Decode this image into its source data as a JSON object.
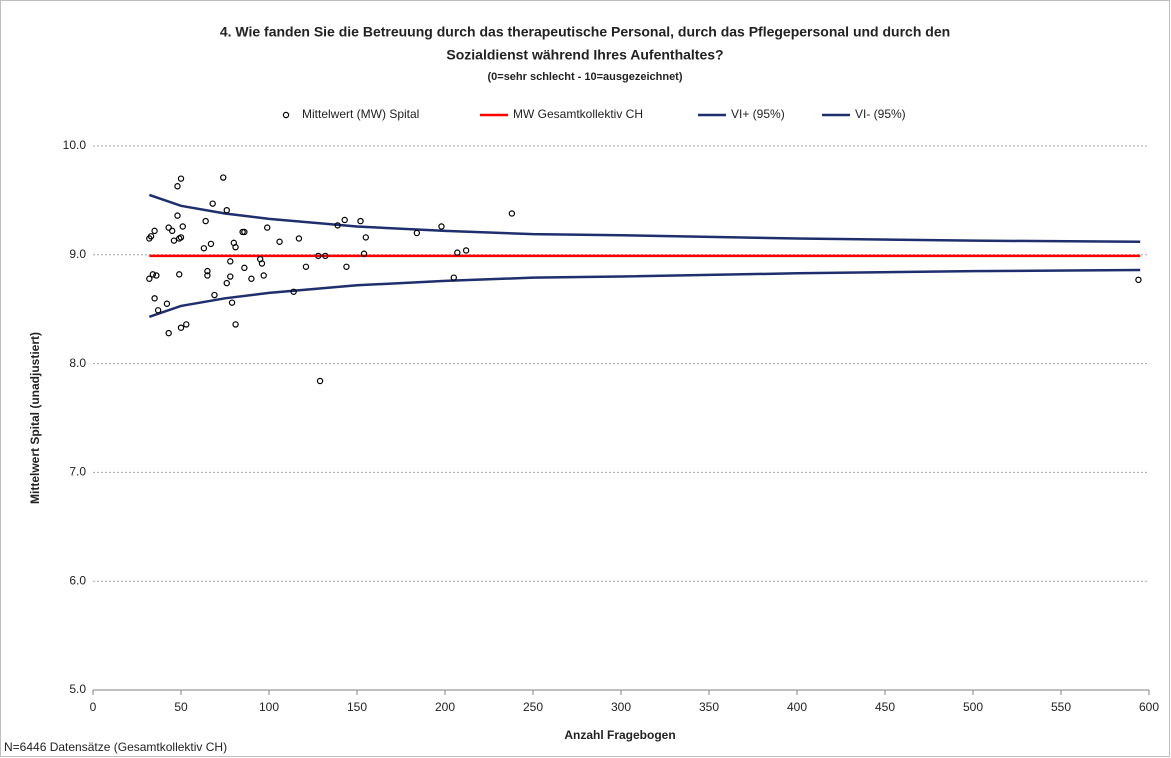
{
  "chart_data": {
    "type": "scatter",
    "title": [
      "4. Wie fanden Sie die Betreuung durch das therapeutische Personal, durch das Pflegepersonal und durch den",
      "Sozialdienst während Ihres Aufenthaltes?"
    ],
    "subtitle": "(0=sehr schlecht - 10=ausgezeichnet)",
    "x_label": "Anzahl Fragebogen",
    "y_label": "Mittelwert Spital (unadjustiert)",
    "footnote": "N=6446 Datensätze (Gesamtkollektiv CH)",
    "xlim": [
      0,
      600
    ],
    "ylim": [
      5,
      10
    ],
    "xticks": [
      0,
      50,
      100,
      150,
      200,
      250,
      300,
      350,
      400,
      450,
      500,
      550,
      600
    ],
    "yticks": [
      {
        "value": 5,
        "label": "5.0"
      },
      {
        "value": 6,
        "label": "6.0"
      },
      {
        "value": 7,
        "label": "7.0"
      },
      {
        "value": 8,
        "label": "8.0"
      },
      {
        "value": 9,
        "label": "9.0"
      },
      {
        "value": 10,
        "label": "10.0"
      }
    ],
    "grid": true,
    "legend": "top",
    "series": [
      {
        "name": "Mittelwert (MW) Spital",
        "style": "markers",
        "color": "#000000",
        "x": [
          32,
          33,
          35,
          32,
          34,
          36,
          35,
          37,
          42,
          43,
          43,
          45,
          46,
          48,
          50,
          48,
          49,
          50,
          51,
          49,
          50,
          53,
          63,
          64,
          65,
          65,
          67,
          68,
          69,
          74,
          76,
          76,
          78,
          78,
          79,
          80,
          81,
          81,
          85,
          86,
          86,
          90,
          95,
          96,
          97,
          99,
          106,
          114,
          117,
          121,
          128,
          129,
          132,
          139,
          143,
          144,
          152,
          154,
          155,
          184,
          198,
          205,
          207,
          212,
          238,
          594
        ],
        "values": [
          9.15,
          9.17,
          9.22,
          8.78,
          8.82,
          8.81,
          8.6,
          8.49,
          8.55,
          8.28,
          9.25,
          9.22,
          9.13,
          9.63,
          9.7,
          9.36,
          9.15,
          9.16,
          9.26,
          8.82,
          8.33,
          8.36,
          9.06,
          9.31,
          8.81,
          8.85,
          9.1,
          9.47,
          8.63,
          9.71,
          9.41,
          8.74,
          8.8,
          8.94,
          8.56,
          9.11,
          9.07,
          8.36,
          9.21,
          9.21,
          8.88,
          8.78,
          8.96,
          8.92,
          8.81,
          9.25,
          9.12,
          8.66,
          9.15,
          8.89,
          8.99,
          7.84,
          8.99,
          9.27,
          9.32,
          8.89,
          9.31,
          9.01,
          9.16,
          9.2,
          9.26,
          8.79,
          9.02,
          9.04,
          9.38,
          8.77
        ]
      },
      {
        "name": "MW Gesamtkollektiv CH",
        "style": "line",
        "color": "#ff0000",
        "x": [
          32,
          595
        ],
        "values": [
          8.99,
          8.99
        ]
      },
      {
        "name": "VI+ (95%)",
        "style": "line",
        "color": "#1f2f6e",
        "x": [
          32,
          50,
          75,
          100,
          150,
          200,
          250,
          300,
          400,
          500,
          595
        ],
        "values": [
          9.55,
          9.45,
          9.38,
          9.33,
          9.26,
          9.22,
          9.19,
          9.18,
          9.15,
          9.13,
          9.12
        ]
      },
      {
        "name": "VI- (95%)",
        "style": "line",
        "color": "#1f2f6e",
        "x": [
          32,
          50,
          75,
          100,
          150,
          200,
          250,
          300,
          400,
          500,
          595
        ],
        "values": [
          8.43,
          8.53,
          8.6,
          8.65,
          8.72,
          8.76,
          8.79,
          8.8,
          8.83,
          8.85,
          8.86
        ]
      }
    ]
  }
}
